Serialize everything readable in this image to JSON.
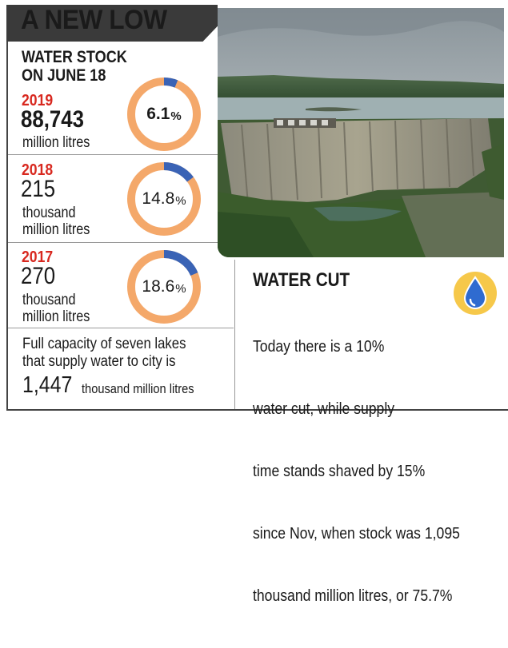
{
  "headline": "A NEW LOW",
  "stock_title": [
    "WATER STOCK",
    "ON JUNE 18"
  ],
  "rows": [
    {
      "year": "2019",
      "value": "88,743",
      "unit_lines": [
        "million litres"
      ],
      "percent": "6.1",
      "fraction": 0.061
    },
    {
      "year": "2018",
      "value": "215",
      "unit_lines": [
        "thousand",
        "million litres"
      ],
      "percent": "14.8",
      "fraction": 0.148
    },
    {
      "year": "2017",
      "value": "270",
      "unit_lines": [
        "thousand",
        "million litres"
      ],
      "percent": "18.6",
      "fraction": 0.186
    }
  ],
  "percent_sign": "%",
  "capacity": {
    "text_lines": [
      "Full capacity of seven lakes",
      "that supply water to city is"
    ],
    "value": "1,447",
    "unit": "thousand million litres"
  },
  "water_cut": {
    "title": "WATER CUT",
    "body_lines": [
      "Today there is a 10%",
      "water cut, while supply",
      "time stands shaved by 15%",
      "since Nov, when stock was 1,095",
      "thousand million litres, or 75.7%"
    ]
  },
  "colors": {
    "banner": "#3a3a3a",
    "year_red": "#d8281f",
    "ring_orange": "#f4a86a",
    "ring_blue": "#3a63b5",
    "drop_ring": "#f6c84a",
    "drop_blue": "#2f6bd0"
  },
  "icons": {
    "water_drop": "water-drop-icon"
  }
}
